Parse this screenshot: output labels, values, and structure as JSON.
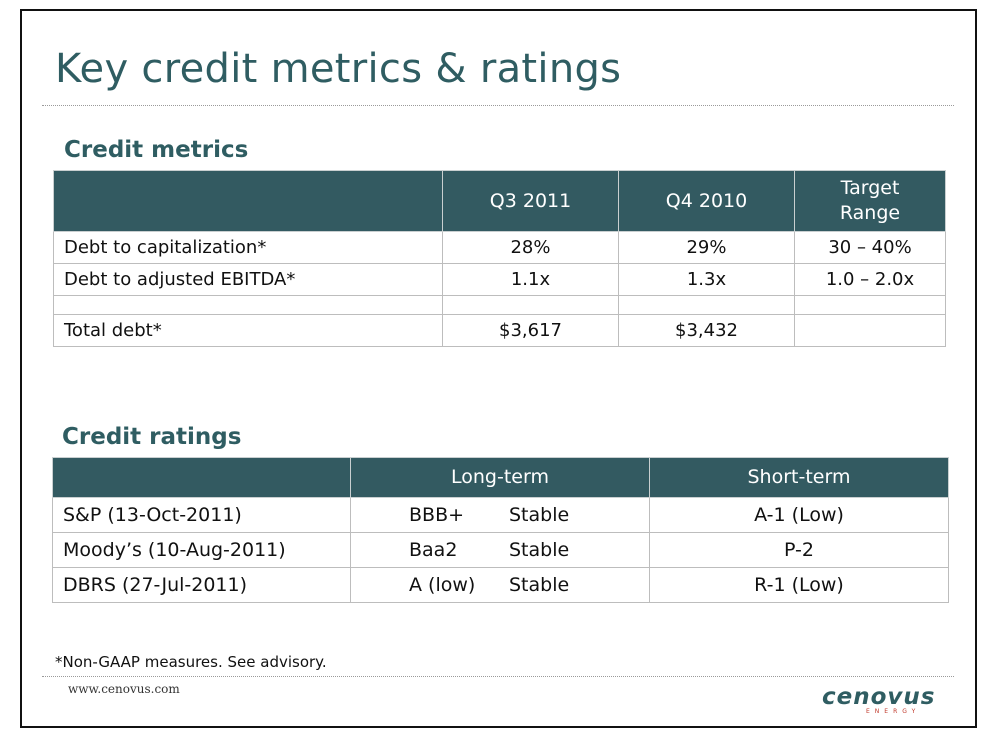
{
  "title": "Key credit metrics & ratings",
  "metrics": {
    "heading": "Credit metrics",
    "columns": [
      "",
      "Q3 2011",
      "Q4 2010",
      "Target Range"
    ],
    "target_line1": "Target",
    "target_line2": "Range",
    "rows": [
      {
        "label": "Debt to capitalization*",
        "q3": "28%",
        "q4": "29%",
        "target": "30 – 40%"
      },
      {
        "label": "Debt to adjusted EBITDA*",
        "q3": "1.1x",
        "q4": "1.3x",
        "target": "1.0 – 2.0x"
      },
      {
        "label": "",
        "q3": "",
        "q4": "",
        "target": ""
      },
      {
        "label": "Total debt*",
        "q3": "$3,617",
        "q4": "$3,432",
        "target": ""
      }
    ]
  },
  "ratings": {
    "heading": "Credit ratings",
    "columns": [
      "",
      "Long-term",
      "Short-term"
    ],
    "rows": [
      {
        "agency": "S&P (13-Oct-2011)",
        "long_grade": "BBB+",
        "long_outlook": "Stable",
        "short": "A-1 (Low)"
      },
      {
        "agency": "Moody’s (10-Aug-2011)",
        "long_grade": "Baa2",
        "long_outlook": "Stable",
        "short": "P-2"
      },
      {
        "agency": "DBRS (27-Jul-2011)",
        "long_grade": "A (low)",
        "long_outlook": "Stable",
        "short": "R-1 (Low)"
      }
    ]
  },
  "footnote": "*Non-GAAP measures. See advisory.",
  "website": "www.cenovus.com",
  "logo": {
    "name": "cenovus",
    "tagline": "ENERGY"
  },
  "colors": {
    "accent": "#2f5d62",
    "table_header": "#335a61"
  }
}
